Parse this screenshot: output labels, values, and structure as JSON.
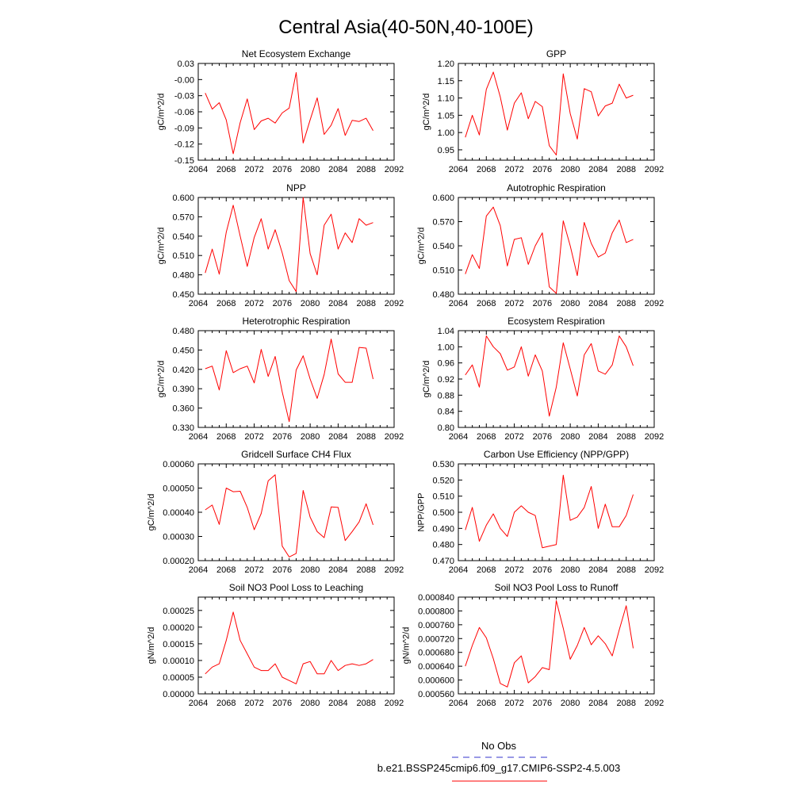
{
  "title": "Central Asia(40-50N,40-100E)",
  "legend": {
    "entries": [
      {
        "label": "No Obs",
        "color": "#3333cc",
        "dash": true
      },
      {
        "label": "b.e21.BSSP245cmip6.f09_g17.CMIP6-SSP2-4.5.003",
        "color": "#ff0000",
        "dash": false
      }
    ]
  },
  "chart_data": [
    {
      "type": "line",
      "title": "Net Ecosystem Exchange",
      "ylabel": "gC/m^2/d",
      "xlim": [
        2064,
        2092
      ],
      "xticks": [
        "2064",
        "2068",
        "2072",
        "2076",
        "2080",
        "2084",
        "2088",
        "2092"
      ],
      "ylim": [
        -0.15,
        0.03
      ],
      "yticks": [
        "-0.15",
        "-0.12",
        "-0.09",
        "-0.06",
        "-0.03",
        "-0.00",
        "0.03"
      ],
      "series": [
        {
          "color": "#ff0000",
          "x": [
            2065,
            2066,
            2067,
            2068,
            2069,
            2070,
            2071,
            2072,
            2073,
            2074,
            2075,
            2076,
            2077,
            2078,
            2079,
            2080,
            2081,
            2082,
            2083,
            2084,
            2085,
            2086,
            2087,
            2088,
            2089
          ],
          "values": [
            -0.025,
            -0.055,
            -0.043,
            -0.075,
            -0.138,
            -0.08,
            -0.036,
            -0.093,
            -0.077,
            -0.072,
            -0.081,
            -0.062,
            -0.053,
            0.013,
            -0.118,
            -0.075,
            -0.034,
            -0.102,
            -0.085,
            -0.054,
            -0.104,
            -0.076,
            -0.078,
            -0.072,
            -0.095
          ]
        }
      ]
    },
    {
      "type": "line",
      "title": "GPP",
      "ylabel": "gC/m^2/d",
      "xlim": [
        2064,
        2092
      ],
      "xticks": [
        "2064",
        "2068",
        "2072",
        "2076",
        "2080",
        "2084",
        "2088",
        "2092"
      ],
      "ylim": [
        0.92,
        1.2
      ],
      "yticks": [
        "0.95",
        "1.00",
        "1.05",
        "1.10",
        "1.15",
        "1.20"
      ],
      "series": [
        {
          "color": "#ff0000",
          "x": [
            2065,
            2066,
            2067,
            2068,
            2069,
            2070,
            2071,
            2072,
            2073,
            2074,
            2075,
            2076,
            2077,
            2078,
            2079,
            2080,
            2081,
            2082,
            2083,
            2084,
            2085,
            2086,
            2087,
            2088,
            2089
          ],
          "values": [
            0.986,
            1.05,
            0.993,
            1.125,
            1.175,
            1.103,
            1.007,
            1.085,
            1.115,
            1.04,
            1.09,
            1.075,
            0.962,
            0.935,
            1.17,
            1.055,
            0.981,
            1.127,
            1.118,
            1.048,
            1.077,
            1.085,
            1.14,
            1.1,
            1.108
          ]
        }
      ]
    },
    {
      "type": "line",
      "title": "NPP",
      "ylabel": "gC/m^2/d",
      "xlim": [
        2064,
        2092
      ],
      "xticks": [
        "2064",
        "2068",
        "2072",
        "2076",
        "2080",
        "2084",
        "2088",
        "2092"
      ],
      "ylim": [
        0.45,
        0.6
      ],
      "yticks": [
        "0.450",
        "0.480",
        "0.510",
        "0.540",
        "0.570",
        "0.600"
      ],
      "series": [
        {
          "color": "#ff0000",
          "x": [
            2065,
            2066,
            2067,
            2068,
            2069,
            2070,
            2071,
            2072,
            2073,
            2074,
            2075,
            2076,
            2077,
            2078,
            2079,
            2080,
            2081,
            2082,
            2083,
            2084,
            2085,
            2086,
            2087,
            2088,
            2089
          ],
          "values": [
            0.483,
            0.52,
            0.481,
            0.546,
            0.588,
            0.54,
            0.493,
            0.538,
            0.567,
            0.52,
            0.55,
            0.514,
            0.471,
            0.454,
            0.6,
            0.513,
            0.48,
            0.557,
            0.574,
            0.52,
            0.545,
            0.53,
            0.567,
            0.557,
            0.561
          ]
        }
      ]
    },
    {
      "type": "line",
      "title": "Autotrophic Respiration",
      "ylabel": "gC/m^2/d",
      "xlim": [
        2064,
        2092
      ],
      "xticks": [
        "2064",
        "2068",
        "2072",
        "2076",
        "2080",
        "2084",
        "2088",
        "2092"
      ],
      "ylim": [
        0.48,
        0.6
      ],
      "yticks": [
        "0.480",
        "0.510",
        "0.540",
        "0.570",
        "0.600"
      ],
      "series": [
        {
          "color": "#ff0000",
          "x": [
            2065,
            2066,
            2067,
            2068,
            2069,
            2070,
            2071,
            2072,
            2073,
            2074,
            2075,
            2076,
            2077,
            2078,
            2079,
            2080,
            2081,
            2082,
            2083,
            2084,
            2085,
            2086,
            2087,
            2088,
            2089
          ],
          "values": [
            0.505,
            0.529,
            0.512,
            0.577,
            0.588,
            0.565,
            0.515,
            0.548,
            0.55,
            0.517,
            0.54,
            0.556,
            0.489,
            0.481,
            0.571,
            0.54,
            0.503,
            0.569,
            0.543,
            0.526,
            0.531,
            0.556,
            0.572,
            0.544,
            0.548
          ]
        }
      ]
    },
    {
      "type": "line",
      "title": "Heterotrophic Respiration",
      "ylabel": "gC/m^2/d",
      "xlim": [
        2064,
        2092
      ],
      "xticks": [
        "2064",
        "2068",
        "2072",
        "2076",
        "2080",
        "2084",
        "2088",
        "2092"
      ],
      "ylim": [
        0.33,
        0.48
      ],
      "yticks": [
        "0.330",
        "0.360",
        "0.390",
        "0.420",
        "0.450",
        "0.480"
      ],
      "series": [
        {
          "color": "#ff0000",
          "x": [
            2065,
            2066,
            2067,
            2068,
            2069,
            2070,
            2071,
            2072,
            2073,
            2074,
            2075,
            2076,
            2077,
            2078,
            2079,
            2080,
            2081,
            2082,
            2083,
            2084,
            2085,
            2086,
            2087,
            2088,
            2089
          ],
          "values": [
            0.421,
            0.425,
            0.388,
            0.449,
            0.415,
            0.421,
            0.425,
            0.399,
            0.451,
            0.409,
            0.44,
            0.385,
            0.339,
            0.419,
            0.441,
            0.405,
            0.375,
            0.412,
            0.467,
            0.413,
            0.4,
            0.4,
            0.454,
            0.453,
            0.405
          ]
        }
      ]
    },
    {
      "type": "line",
      "title": "Ecosystem Respiration",
      "ylabel": "gC/m^2/d",
      "xlim": [
        2064,
        2092
      ],
      "xticks": [
        "2064",
        "2068",
        "2072",
        "2076",
        "2080",
        "2084",
        "2088",
        "2092"
      ],
      "ylim": [
        0.8,
        1.04
      ],
      "yticks": [
        "0.80",
        "0.84",
        "0.88",
        "0.92",
        "0.96",
        "1.00",
        "1.04"
      ],
      "series": [
        {
          "color": "#ff0000",
          "x": [
            2065,
            2066,
            2067,
            2068,
            2069,
            2070,
            2071,
            2072,
            2073,
            2074,
            2075,
            2076,
            2077,
            2078,
            2079,
            2080,
            2081,
            2082,
            2083,
            2084,
            2085,
            2086,
            2087,
            2088,
            2089
          ],
          "values": [
            0.93,
            0.955,
            0.9,
            1.027,
            1.0,
            0.983,
            0.942,
            0.95,
            1.0,
            0.927,
            0.98,
            0.94,
            0.828,
            0.9,
            1.01,
            0.945,
            0.878,
            0.98,
            1.008,
            0.94,
            0.932,
            0.955,
            1.027,
            1.0,
            0.953
          ]
        }
      ]
    },
    {
      "type": "line",
      "title": "Gridcell Surface CH4 Flux",
      "ylabel": "gC/m^2/d",
      "xlim": [
        2064,
        2092
      ],
      "xticks": [
        "2064",
        "2068",
        "2072",
        "2076",
        "2080",
        "2084",
        "2088",
        "2092"
      ],
      "ylim": [
        0.0002,
        0.0006
      ],
      "yticks": [
        "0.00020",
        "0.00030",
        "0.00040",
        "0.00050",
        "0.00060"
      ],
      "series": [
        {
          "color": "#ff0000",
          "x": [
            2065,
            2066,
            2067,
            2068,
            2069,
            2070,
            2071,
            2072,
            2073,
            2074,
            2075,
            2076,
            2077,
            2078,
            2079,
            2080,
            2081,
            2082,
            2083,
            2084,
            2085,
            2086,
            2087,
            2088,
            2089
          ],
          "values": [
            0.00041,
            0.00043,
            0.00035,
            0.0005,
            0.000485,
            0.000487,
            0.00042,
            0.000328,
            0.000395,
            0.00053,
            0.000555,
            0.00026,
            0.000215,
            0.00023,
            0.00049,
            0.00038,
            0.00032,
            0.000295,
            0.000422,
            0.00042,
            0.000283,
            0.00032,
            0.00036,
            0.000435,
            0.000348
          ]
        }
      ]
    },
    {
      "type": "line",
      "title": "Carbon Use Efficiency (NPP/GPP)",
      "ylabel": "NPP/GPP",
      "xlim": [
        2064,
        2092
      ],
      "xticks": [
        "2064",
        "2068",
        "2072",
        "2076",
        "2080",
        "2084",
        "2088",
        "2092"
      ],
      "ylim": [
        0.47,
        0.53
      ],
      "yticks": [
        "0.470",
        "0.480",
        "0.490",
        "0.500",
        "0.510",
        "0.520",
        "0.530"
      ],
      "series": [
        {
          "color": "#ff0000",
          "x": [
            2065,
            2066,
            2067,
            2068,
            2069,
            2070,
            2071,
            2072,
            2073,
            2074,
            2075,
            2076,
            2077,
            2078,
            2079,
            2080,
            2081,
            2082,
            2083,
            2084,
            2085,
            2086,
            2087,
            2088,
            2089
          ],
          "values": [
            0.489,
            0.503,
            0.482,
            0.492,
            0.499,
            0.49,
            0.485,
            0.5,
            0.504,
            0.5,
            0.498,
            0.478,
            0.479,
            0.48,
            0.523,
            0.495,
            0.497,
            0.503,
            0.516,
            0.49,
            0.505,
            0.491,
            0.491,
            0.498,
            0.511
          ]
        }
      ]
    },
    {
      "type": "line",
      "title": "Soil NO3 Pool Loss to Leaching",
      "ylabel": "gN/m^2/d",
      "xlim": [
        2064,
        2092
      ],
      "xticks": [
        "2064",
        "2068",
        "2072",
        "2076",
        "2080",
        "2084",
        "2088",
        "2092"
      ],
      "ylim": [
        0.0,
        0.00029
      ],
      "yticks": [
        "0.00000",
        "0.00005",
        "0.00010",
        "0.00015",
        "0.00020",
        "0.00025"
      ],
      "series": [
        {
          "color": "#ff0000",
          "x": [
            2065,
            2066,
            2067,
            2068,
            2069,
            2070,
            2071,
            2072,
            2073,
            2074,
            2075,
            2076,
            2077,
            2078,
            2079,
            2080,
            2081,
            2082,
            2083,
            2084,
            2085,
            2086,
            2087,
            2088,
            2089
          ],
          "values": [
            6e-05,
            8e-05,
            9e-05,
            0.00016,
            0.000245,
            0.00016,
            0.00012,
            8e-05,
            7e-05,
            7e-05,
            9e-05,
            5e-05,
            4e-05,
            3e-05,
            9e-05,
            9.7e-05,
            6e-05,
            6e-05,
            0.0001,
            7e-05,
            8.5e-05,
            9e-05,
            8.5e-05,
            9e-05,
            0.000103
          ]
        }
      ]
    },
    {
      "type": "line",
      "title": "Soil NO3 Pool Loss to Runoff",
      "ylabel": "gN/m^2/d",
      "xlim": [
        2064,
        2092
      ],
      "xticks": [
        "2064",
        "2068",
        "2072",
        "2076",
        "2080",
        "2084",
        "2088",
        "2092"
      ],
      "ylim": [
        0.00056,
        0.00084
      ],
      "yticks": [
        "0.000560",
        "0.000600",
        "0.000640",
        "0.000680",
        "0.000720",
        "0.000760",
        "0.000800",
        "0.000840"
      ],
      "series": [
        {
          "color": "#ff0000",
          "x": [
            2065,
            2066,
            2067,
            2068,
            2069,
            2070,
            2071,
            2072,
            2073,
            2074,
            2075,
            2076,
            2077,
            2078,
            2079,
            2080,
            2081,
            2082,
            2083,
            2084,
            2085,
            2086,
            2087,
            2088,
            2089
          ],
          "values": [
            0.00064,
            0.0007,
            0.000752,
            0.000722,
            0.000662,
            0.00059,
            0.00058,
            0.00065,
            0.00067,
            0.000592,
            0.00061,
            0.000636,
            0.00063,
            0.00083,
            0.00075,
            0.00066,
            0.0007,
            0.000752,
            0.000702,
            0.000728,
            0.000705,
            0.00067,
            0.000745,
            0.000815,
            0.000692
          ]
        }
      ]
    }
  ]
}
